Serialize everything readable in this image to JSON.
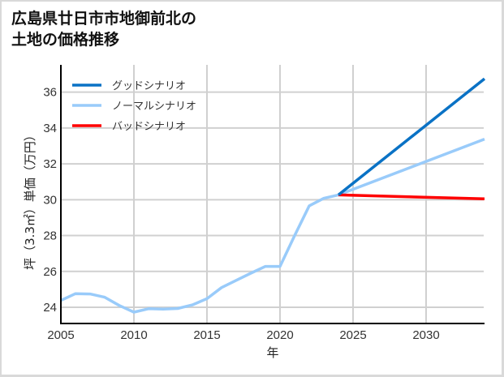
{
  "title_line1": "広島県廿日市市地御前北の",
  "title_line2": "土地の価格推移",
  "chart_data": {
    "type": "line",
    "title": "広島県廿日市市地御前北の土地の価格推移",
    "xlabel": "年",
    "ylabel": "坪（3.3㎡）単価（万円）",
    "xlim": [
      2005,
      2034
    ],
    "ylim": [
      23,
      37.5
    ],
    "x_ticks": [
      2005,
      2010,
      2015,
      2020,
      2025,
      2030
    ],
    "y_ticks": [
      24,
      26,
      28,
      30,
      32,
      34,
      36
    ],
    "grid": true,
    "legend_position": "upper left",
    "series": [
      {
        "name": "グッドシナリオ",
        "color": "#0a72c5",
        "x": [
          2024,
          2034
        ],
        "values": [
          30.27,
          36.75
        ]
      },
      {
        "name": "ノーマルシナリオ",
        "color": "#99cbfa",
        "x": [
          2005,
          2006,
          2007,
          2008,
          2009,
          2010,
          2011,
          2012,
          2013,
          2014,
          2015,
          2016,
          2017,
          2018,
          2019,
          2020,
          2021,
          2022,
          2023,
          2024,
          2034
        ],
        "values": [
          24.38,
          24.76,
          24.74,
          24.56,
          24.1,
          23.73,
          23.92,
          23.9,
          23.93,
          24.13,
          24.48,
          25.1,
          25.5,
          25.9,
          26.28,
          26.28,
          28.0,
          29.66,
          30.08,
          30.27,
          33.38
        ]
      },
      {
        "name": "バッドシナリオ",
        "color": "#ff0000",
        "x": [
          2024,
          2034
        ],
        "values": [
          30.27,
          30.05
        ]
      }
    ]
  }
}
